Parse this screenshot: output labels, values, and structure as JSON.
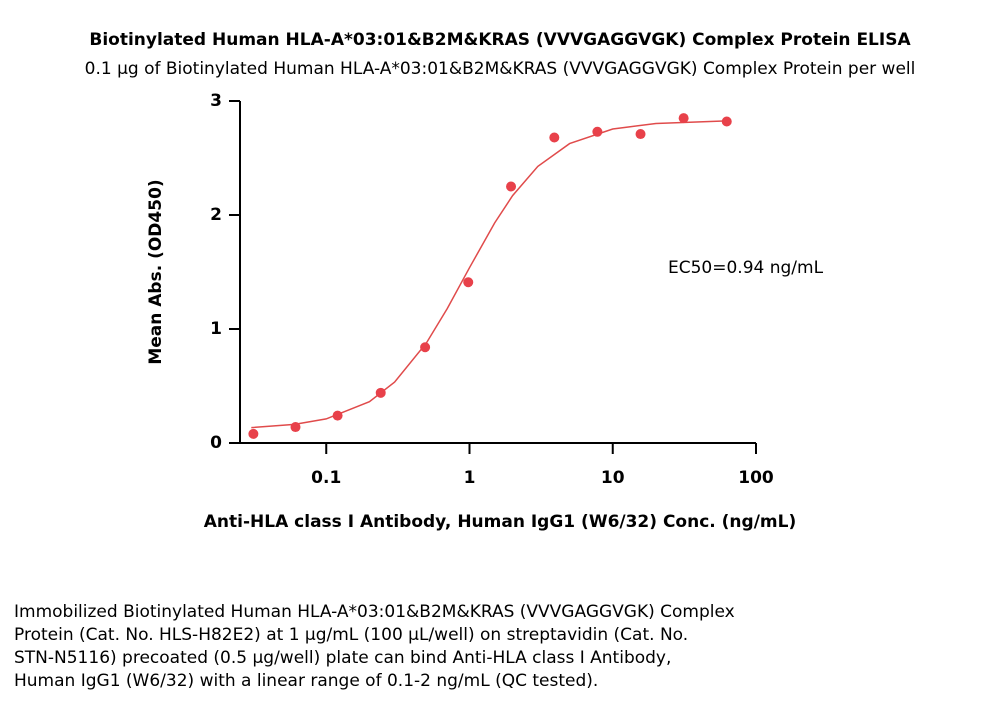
{
  "chart_data": {
    "type": "scatter",
    "title": "Biotinylated Human HLA-A*03:01&B2M&KRAS (VVVGAGGVGK) Complex Protein ELISA",
    "subtitle": "0.1 μg of Biotinylated Human HLA-A*03:01&B2M&KRAS (VVVGAGGVGK) Complex Protein per well",
    "x_label": "Anti-HLA class I Antibody, Human IgG1 (W6/32) Conc. (ng/mL)",
    "y_label": "Mean Abs. (OD450)",
    "annotation": "EC50=0.94 ng/mL",
    "x_scale": "log",
    "xlim": [
      0.025,
      100
    ],
    "xticks": [
      0.1,
      1,
      10,
      100
    ],
    "ylim": [
      0,
      3
    ],
    "yticks": [
      0,
      1,
      2,
      3
    ],
    "x": [
      0.031,
      0.061,
      0.12,
      0.24,
      0.49,
      0.98,
      1.95,
      3.91,
      7.81,
      15.63,
      31.25,
      62.5
    ],
    "values": [
      0.08,
      0.14,
      0.24,
      0.44,
      0.84,
      1.41,
      2.25,
      2.68,
      2.73,
      2.71,
      2.85,
      2.82
    ],
    "color": "#e8414a",
    "fit": {
      "color": "#e04b4b",
      "x": [
        0.03,
        0.06,
        0.1,
        0.2,
        0.3,
        0.5,
        0.7,
        1,
        1.5,
        2,
        3,
        5,
        10,
        20,
        62.5
      ],
      "values": [
        0.135,
        0.163,
        0.211,
        0.362,
        0.534,
        0.877,
        1.18,
        1.538,
        1.931,
        2.17,
        2.426,
        2.626,
        2.754,
        2.803,
        2.825
      ]
    }
  },
  "description": [
    "Immobilized Biotinylated Human HLA-A*03:01&B2M&KRAS (VVVGAGGVGK) Complex",
    "Protein (Cat. No. HLS-H82E2) at 1 μg/mL (100 μL/well) on streptavidin (Cat. No.",
    "STN-N5116) precoated (0.5 μg/well) plate can bind Anti-HLA class I Antibody,",
    "Human IgG1 (W6/32) with a linear range of 0.1-2 ng/mL (QC tested)."
  ]
}
